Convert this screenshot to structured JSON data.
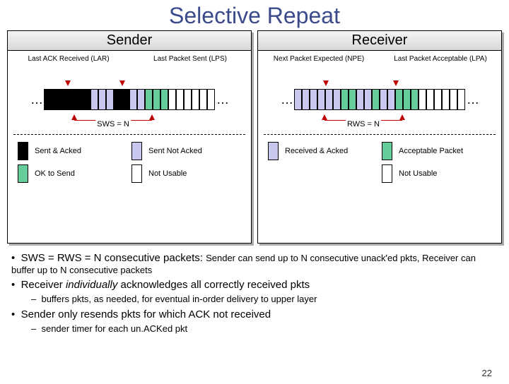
{
  "title": "Selective Repeat",
  "pagenum": "22",
  "colors": {
    "sentAcked": "#000000",
    "sentNotAcked": "#c8c8ee",
    "okToSend": "#66cc99",
    "notUsable": "#ffffff",
    "recvAcked": "#c8c8ee",
    "acceptable": "#66cc99",
    "arrow": "#c00000"
  },
  "sender": {
    "header": "Sender",
    "label1": "Last ACK Received (LAR)",
    "label2": "Last Packet Sent (LPS)",
    "windowLabel": "SWS = N",
    "slots": [
      "sentAcked",
      "sentAcked",
      "sentAcked",
      "sentAcked",
      "sentAcked",
      "sentAcked",
      "sentNotAcked",
      "sentNotAcked",
      "sentNotAcked",
      "sentAcked",
      "sentAcked",
      "sentNotAcked",
      "sentNotAcked",
      "okToSend",
      "okToSend",
      "okToSend",
      "notUsable",
      "notUsable",
      "notUsable",
      "notUsable",
      "notUsable",
      "notUsable"
    ],
    "arrow1Slot": 5,
    "arrow2Slot": 12,
    "windowStart": 6,
    "windowEnd": 15,
    "legend": [
      {
        "c": "sentAcked",
        "t": "Sent & Acked"
      },
      {
        "c": "sentNotAcked",
        "t": "Sent Not Acked"
      },
      {
        "c": "okToSend",
        "t": "OK to Send"
      },
      {
        "c": "notUsable",
        "t": "Not Usable"
      }
    ]
  },
  "receiver": {
    "header": "Receiver",
    "label1": "Next Packet Expected (NPE)",
    "label2": "Last Packet Acceptable (LPA)",
    "windowLabel": "RWS = N",
    "slots": [
      "recvAcked",
      "recvAcked",
      "recvAcked",
      "recvAcked",
      "recvAcked",
      "recvAcked",
      "acceptable",
      "acceptable",
      "recvAcked",
      "recvAcked",
      "acceptable",
      "recvAcked",
      "recvAcked",
      "acceptable",
      "acceptable",
      "acceptable",
      "notUsable",
      "notUsable",
      "notUsable",
      "notUsable",
      "notUsable",
      "notUsable"
    ],
    "arrow1Slot": 6,
    "arrow2Slot": 15,
    "windowStart": 6,
    "windowEnd": 15,
    "legend": [
      {
        "c": "recvAcked",
        "t": "Received & Acked"
      },
      {
        "c": "acceptable",
        "t": "Acceptable Packet"
      },
      {
        "c": null,
        "t": ""
      },
      {
        "c": "notUsable",
        "t": "Not Usable"
      }
    ]
  },
  "bullets": {
    "b1a": "SWS = RWS = N consecutive packets: ",
    "b1b": "Sender can send up to N consecutive unack'ed pkts, Receiver can buffer up to N consecutive packets",
    "b2a": "Receiver ",
    "b2b": "individually",
    "b2c": " acknowledges all correctly received pkts",
    "b2sub": "buffers pkts, as needed, for eventual in-order delivery to upper layer",
    "b3": "Sender only resends pkts for which ACK not received",
    "b3sub": "sender timer for each un.ACKed pkt"
  }
}
